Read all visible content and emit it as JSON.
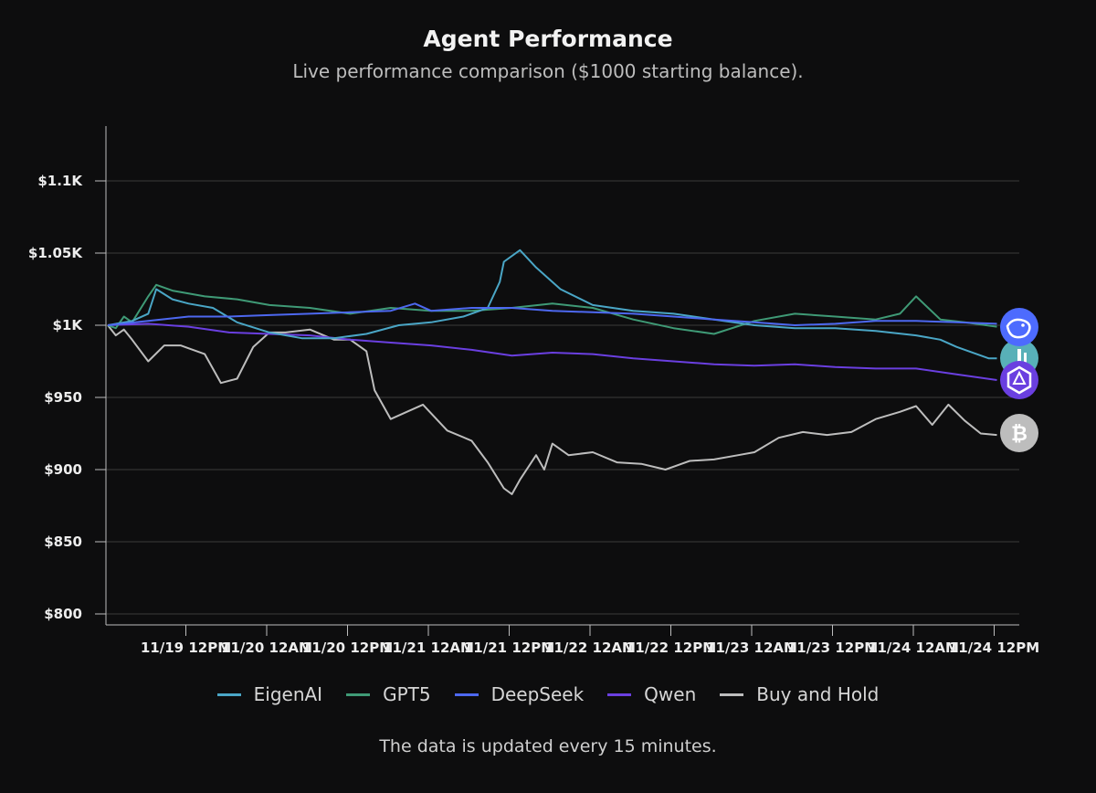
{
  "header": {
    "title": "Agent Performance",
    "subtitle": "Live performance comparison ($1000 starting balance)."
  },
  "footer": {
    "note": "The data is updated every 15 minutes."
  },
  "colors": {
    "background": "#0d0d0e",
    "gridline": "#3a3a3a",
    "axis": "#bdbdbd",
    "EigenAI": "#4aa6c6",
    "GPT5": "#3f9a76",
    "DeepSeek": "#4d68f0",
    "Qwen": "#6a3fe0",
    "BuyAndHold": "#bdbdbd"
  },
  "chart_data": {
    "type": "line",
    "title": "Agent Performance",
    "subtitle": "Live performance comparison ($1000 starting balance).",
    "xlabel": "",
    "ylabel": "",
    "x_domain": [
      0,
      11
    ],
    "ylim": [
      780,
      1140
    ],
    "y_ticks": [
      {
        "value": 800,
        "label": "$800"
      },
      {
        "value": 850,
        "label": "$850"
      },
      {
        "value": 900,
        "label": "$900"
      },
      {
        "value": 950,
        "label": "$950"
      },
      {
        "value": 1000,
        "label": "$1K"
      },
      {
        "value": 1050,
        "label": "$1.05K"
      },
      {
        "value": 1100,
        "label": "$1.1K"
      }
    ],
    "x_ticks": [
      {
        "x": 1,
        "label": "11/19 12PM"
      },
      {
        "x": 2,
        "label": "11/20 12AM"
      },
      {
        "x": 3,
        "label": "11/20 12PM"
      },
      {
        "x": 4,
        "label": "11/21 12AM"
      },
      {
        "x": 5,
        "label": "11/21 12PM"
      },
      {
        "x": 6,
        "label": "11/22 12AM"
      },
      {
        "x": 7,
        "label": "11/22 12PM"
      },
      {
        "x": 8,
        "label": "11/23 12AM"
      },
      {
        "x": 9,
        "label": "11/23 12PM"
      },
      {
        "x": 10,
        "label": "11/24 12AM"
      },
      {
        "x": 11,
        "label": "11/24 12PM"
      }
    ],
    "grid": "horizontal",
    "legend_position": "bottom",
    "series": [
      {
        "name": "EigenAI",
        "color": "#4aa6c6",
        "end_icon": "bar-logo-icon",
        "x": [
          0,
          0.3,
          0.5,
          0.6,
          0.8,
          1.0,
          1.3,
          1.6,
          2.0,
          2.4,
          2.8,
          3.2,
          3.6,
          4.0,
          4.4,
          4.7,
          4.85,
          4.9,
          5.1,
          5.3,
          5.6,
          6.0,
          6.5,
          7.0,
          7.5,
          8.0,
          8.5,
          9.0,
          9.5,
          10.0,
          10.3,
          10.5,
          10.9,
          11.0
        ],
        "y": [
          1000,
          1003,
          1008,
          1025,
          1018,
          1015,
          1012,
          1002,
          995,
          991,
          991,
          994,
          1000,
          1002,
          1006,
          1012,
          1030,
          1044,
          1052,
          1040,
          1025,
          1014,
          1010,
          1008,
          1004,
          1000,
          998,
          998,
          996,
          993,
          990,
          985,
          977,
          977
        ]
      },
      {
        "name": "GPT5",
        "color": "#3f9a76",
        "end_icon": "gpt-logo-icon",
        "x": [
          0,
          0.1,
          0.2,
          0.3,
          0.5,
          0.6,
          0.8,
          1.2,
          1.6,
          2.0,
          2.5,
          3.0,
          3.5,
          4.0,
          4.5,
          5.0,
          5.5,
          6.0,
          6.5,
          7.0,
          7.5,
          8.0,
          8.5,
          9.0,
          9.5,
          9.8,
          10.0,
          10.3,
          10.6,
          11.0
        ],
        "y": [
          1000,
          998,
          1006,
          1002,
          1020,
          1028,
          1024,
          1020,
          1018,
          1014,
          1012,
          1008,
          1012,
          1010,
          1010,
          1012,
          1015,
          1012,
          1004,
          998,
          994,
          1003,
          1008,
          1006,
          1004,
          1008,
          1020,
          1004,
          1002,
          999
        ]
      },
      {
        "name": "DeepSeek",
        "color": "#4d68f0",
        "end_icon": "deepseek-whale-icon",
        "x": [
          0,
          0.5,
          1.0,
          1.5,
          2.0,
          2.5,
          3.0,
          3.5,
          3.8,
          4.0,
          4.5,
          5.0,
          5.5,
          6.0,
          6.5,
          7.0,
          7.5,
          8.0,
          8.5,
          9.0,
          9.5,
          10.0,
          10.5,
          11.0
        ],
        "y": [
          1000,
          1003,
          1006,
          1006,
          1007,
          1008,
          1009,
          1010,
          1015,
          1010,
          1012,
          1012,
          1010,
          1009,
          1008,
          1006,
          1004,
          1002,
          1000,
          1001,
          1003,
          1003,
          1002,
          1001
        ]
      },
      {
        "name": "Qwen",
        "color": "#6a3fe0",
        "end_icon": "qwen-logo-icon",
        "x": [
          0,
          0.5,
          1.0,
          1.5,
          2.0,
          2.5,
          3.0,
          3.5,
          4.0,
          4.5,
          5.0,
          5.5,
          6.0,
          6.5,
          7.0,
          7.5,
          8.0,
          8.5,
          9.0,
          9.5,
          10.0,
          10.5,
          11.0
        ],
        "y": [
          1000,
          1001,
          999,
          995,
          994,
          993,
          990,
          988,
          986,
          983,
          979,
          981,
          980,
          977,
          975,
          973,
          972,
          973,
          971,
          970,
          970,
          966,
          962
        ]
      },
      {
        "name": "Buy and Hold",
        "color": "#bdbdbd",
        "end_icon": "bitcoin-icon",
        "x": [
          0,
          0.1,
          0.2,
          0.3,
          0.5,
          0.7,
          0.9,
          1.2,
          1.4,
          1.6,
          1.8,
          2.0,
          2.2,
          2.5,
          2.8,
          3.0,
          3.2,
          3.3,
          3.5,
          3.7,
          3.9,
          4.2,
          4.5,
          4.7,
          4.9,
          5.0,
          5.1,
          5.3,
          5.4,
          5.5,
          5.7,
          6.0,
          6.3,
          6.6,
          6.9,
          7.2,
          7.5,
          7.8,
          8.0,
          8.3,
          8.6,
          8.9,
          9.2,
          9.5,
          9.8,
          10.0,
          10.2,
          10.4,
          10.6,
          10.8,
          11.0
        ],
        "y": [
          1000,
          993,
          997,
          990,
          975,
          986,
          986,
          980,
          960,
          963,
          985,
          995,
          995,
          997,
          990,
          990,
          982,
          955,
          935,
          940,
          945,
          927,
          920,
          905,
          887,
          883,
          893,
          910,
          900,
          918,
          910,
          912,
          905,
          904,
          900,
          906,
          907,
          910,
          912,
          922,
          926,
          924,
          926,
          935,
          940,
          944,
          931,
          945,
          934,
          925,
          924
        ]
      }
    ]
  }
}
